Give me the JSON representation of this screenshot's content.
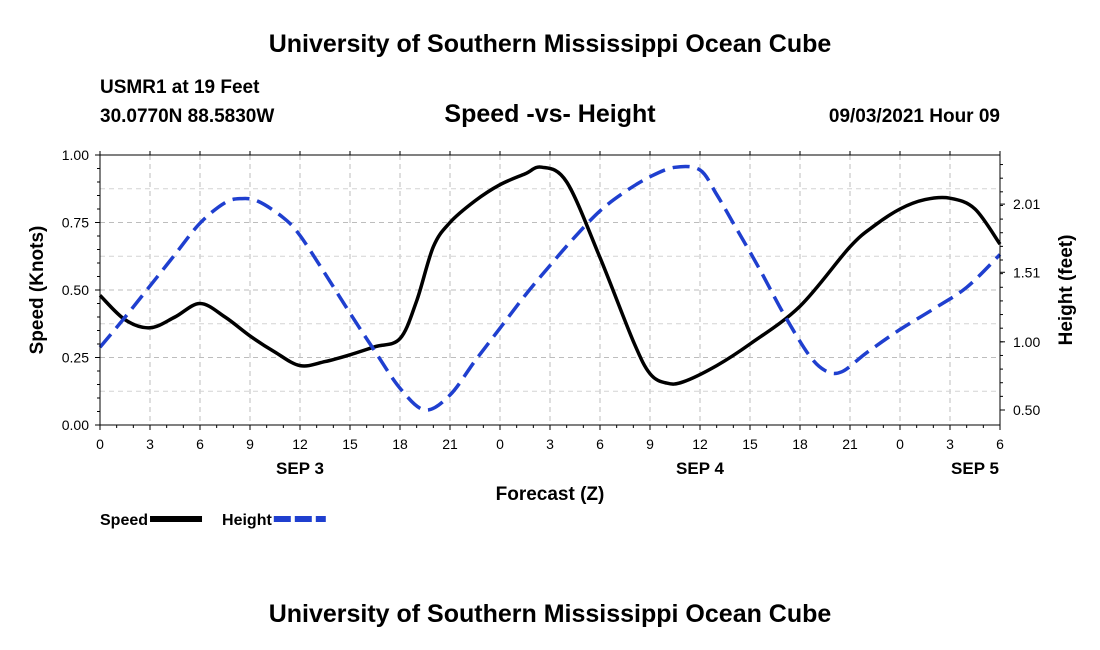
{
  "header": {
    "title": "University of Southern Mississippi Ocean Cube",
    "station": "USMR1 at 19 Feet",
    "coords": "30.0770N  88.5830W",
    "subtitle": "Speed -vs- Height",
    "datetime": "09/03/2021 Hour 09"
  },
  "footer": {
    "title": "University of Southern Mississippi Ocean Cube"
  },
  "chart_data": {
    "type": "line",
    "title": "Speed -vs- Height",
    "xlabel": "Forecast (Z)",
    "ylabel": "Speed (Knots)",
    "y2label": "Height (feet)",
    "x_range": [
      0,
      54
    ],
    "x_ticks": [
      0,
      3,
      6,
      9,
      12,
      15,
      18,
      21,
      24,
      27,
      30,
      33,
      36,
      39,
      42,
      45,
      48,
      51,
      54
    ],
    "x_tick_labels": [
      "0",
      "3",
      "6",
      "9",
      "12",
      "15",
      "18",
      "21",
      "0",
      "3",
      "6",
      "9",
      "12",
      "15",
      "18",
      "21",
      "0",
      "3",
      "6"
    ],
    "date_labels": [
      {
        "x": 12,
        "label": "SEP 3"
      },
      {
        "x": 36,
        "label": "SEP 4"
      },
      {
        "x": 52.5,
        "label": "SEP 5"
      }
    ],
    "ylim": [
      0,
      1
    ],
    "y_ticks": [
      0,
      0.25,
      0.5,
      0.75,
      1
    ],
    "y_tick_labels": [
      "0.00",
      "0.25",
      "0.50",
      "0.75",
      "1.00"
    ],
    "y2lim": [
      0.39,
      2.37
    ],
    "y2_ticks": [
      0.5,
      1.0,
      1.51,
      2.01
    ],
    "y2_tick_labels": [
      "0.50",
      "1.00",
      "1.51",
      "2.01"
    ],
    "grid": true,
    "legend": "bottom-left",
    "series": [
      {
        "name": "Speed",
        "axis": "left",
        "color": "#000000",
        "dashed": false,
        "x": [
          0,
          1.5,
          3,
          4.5,
          6,
          7.5,
          9,
          10.5,
          12,
          13.5,
          15,
          16.5,
          18,
          19,
          20,
          21,
          22.5,
          24,
          25.5,
          26.5,
          28,
          30,
          32,
          33,
          34,
          35,
          37,
          39,
          42,
          45,
          46.5,
          48,
          49.5,
          51,
          52.5,
          54
        ],
        "y": [
          0.48,
          0.39,
          0.36,
          0.4,
          0.45,
          0.4,
          0.33,
          0.27,
          0.22,
          0.235,
          0.26,
          0.29,
          0.32,
          0.46,
          0.66,
          0.75,
          0.83,
          0.89,
          0.93,
          0.955,
          0.9,
          0.62,
          0.31,
          0.19,
          0.155,
          0.16,
          0.22,
          0.3,
          0.44,
          0.66,
          0.74,
          0.8,
          0.835,
          0.84,
          0.8,
          0.67
        ]
      },
      {
        "name": "Height",
        "axis": "right",
        "color": "#1f3fcf",
        "dashed": true,
        "x": [
          0,
          1.5,
          3,
          4.5,
          6,
          7.5,
          8.5,
          9.5,
          11,
          12,
          13.5,
          15,
          16.5,
          18,
          19.5,
          21,
          22.5,
          24,
          25.5,
          27,
          28.5,
          30,
          31.5,
          33,
          34.5,
          36,
          37,
          38,
          39.5,
          41,
          42.5,
          43.5,
          44.5,
          46,
          48,
          50,
          52,
          54
        ],
        "y": [
          0.96,
          1.18,
          1.41,
          1.64,
          1.87,
          2.02,
          2.05,
          2.03,
          1.91,
          1.78,
          1.5,
          1.21,
          0.93,
          0.66,
          0.5,
          0.61,
          0.86,
          1.1,
          1.34,
          1.56,
          1.77,
          1.96,
          2.1,
          2.21,
          2.28,
          2.26,
          2.08,
          1.87,
          1.55,
          1.21,
          0.91,
          0.79,
          0.78,
          0.92,
          1.09,
          1.24,
          1.4,
          1.64
        ]
      }
    ]
  }
}
